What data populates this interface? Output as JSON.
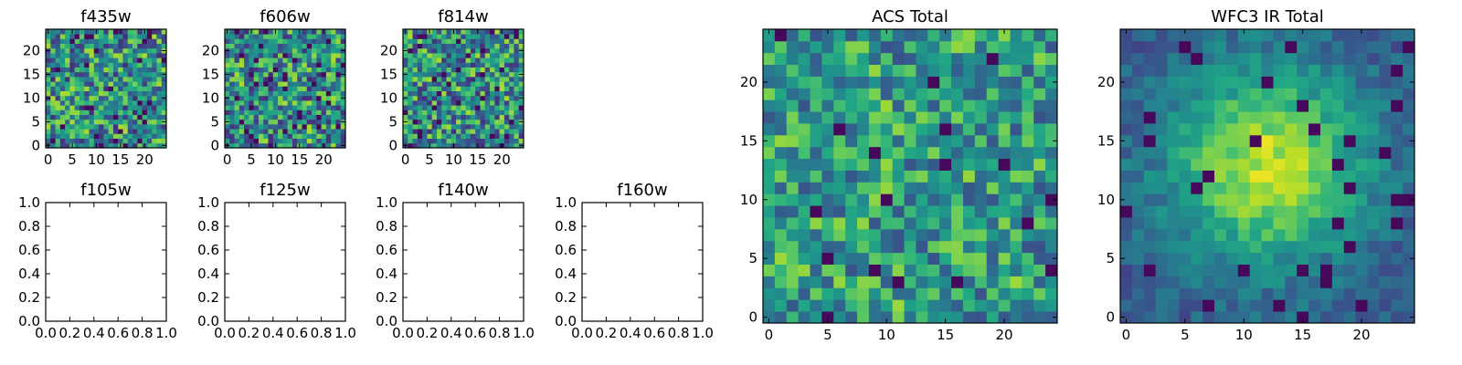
{
  "chart_data": [
    {
      "type": "heatmap",
      "title": "f435w",
      "grid_size": 25,
      "colormap": "viridis",
      "xlim": [
        -0.5,
        24.5
      ],
      "ylim": [
        -0.5,
        24.5
      ],
      "xticks": [
        "0",
        "5",
        "10",
        "15",
        "20"
      ],
      "yticks": [
        "0",
        "5",
        "10",
        "15",
        "20"
      ],
      "seed": 11,
      "pattern": "noise",
      "values": []
    },
    {
      "type": "heatmap",
      "title": "f606w",
      "grid_size": 25,
      "colormap": "viridis",
      "xlim": [
        -0.5,
        24.5
      ],
      "ylim": [
        -0.5,
        24.5
      ],
      "xticks": [
        "0",
        "5",
        "10",
        "15",
        "20"
      ],
      "yticks": [
        "0",
        "5",
        "10",
        "15",
        "20"
      ],
      "seed": 23,
      "pattern": "noise",
      "values": []
    },
    {
      "type": "heatmap",
      "title": "f814w",
      "grid_size": 25,
      "colormap": "viridis",
      "xlim": [
        -0.5,
        24.5
      ],
      "ylim": [
        -0.5,
        24.5
      ],
      "xticks": [
        "0",
        "5",
        "10",
        "15",
        "20"
      ],
      "yticks": [
        "0",
        "5",
        "10",
        "15",
        "20"
      ],
      "seed": 37,
      "pattern": "noise",
      "values": []
    },
    {
      "type": "empty",
      "title": "f105w",
      "xlim": [
        0,
        1
      ],
      "ylim": [
        0,
        1
      ],
      "xticks": [
        "0.0",
        "0.2",
        "0.4",
        "0.6",
        "0.8",
        "1.0"
      ],
      "yticks": [
        "0.0",
        "0.2",
        "0.4",
        "0.6",
        "0.8",
        "1.0"
      ]
    },
    {
      "type": "empty",
      "title": "f125w",
      "xlim": [
        0,
        1
      ],
      "ylim": [
        0,
        1
      ],
      "xticks": [
        "0.0",
        "0.2",
        "0.4",
        "0.6",
        "0.8",
        "1.0"
      ],
      "yticks": [
        "0.0",
        "0.2",
        "0.4",
        "0.6",
        "0.8",
        "1.0"
      ]
    },
    {
      "type": "empty",
      "title": "f140w",
      "xlim": [
        0,
        1
      ],
      "ylim": [
        0,
        1
      ],
      "xticks": [
        "0.0",
        "0.2",
        "0.4",
        "0.6",
        "0.8",
        "1.0"
      ],
      "yticks": [
        "0.0",
        "0.2",
        "0.4",
        "0.6",
        "0.8",
        "1.0"
      ]
    },
    {
      "type": "empty",
      "title": "f160w",
      "xlim": [
        0,
        1
      ],
      "ylim": [
        0,
        1
      ],
      "xticks": [
        "0.0",
        "0.2",
        "0.4",
        "0.6",
        "0.8",
        "1.0"
      ],
      "yticks": [
        "0.0",
        "0.2",
        "0.4",
        "0.6",
        "0.8",
        "1.0"
      ]
    },
    {
      "type": "heatmap",
      "title": "ACS Total",
      "grid_size": 25,
      "colormap": "viridis",
      "xlim": [
        -0.5,
        24.5
      ],
      "ylim": [
        -0.5,
        24.5
      ],
      "xticks": [
        "0",
        "5",
        "10",
        "15",
        "20"
      ],
      "yticks": [
        "0",
        "5",
        "10",
        "15",
        "20"
      ],
      "seed": 53,
      "pattern": "noise-bright",
      "values": []
    },
    {
      "type": "heatmap",
      "title": "WFC3 IR Total",
      "grid_size": 25,
      "colormap": "viridis",
      "xlim": [
        -0.5,
        24.5
      ],
      "ylim": [
        -0.5,
        24.5
      ],
      "xticks": [
        "0",
        "5",
        "10",
        "15",
        "20"
      ],
      "yticks": [
        "0",
        "5",
        "10",
        "15",
        "20"
      ],
      "seed": 71,
      "pattern": "central-blob",
      "center": [
        12,
        13
      ],
      "values": []
    }
  ]
}
